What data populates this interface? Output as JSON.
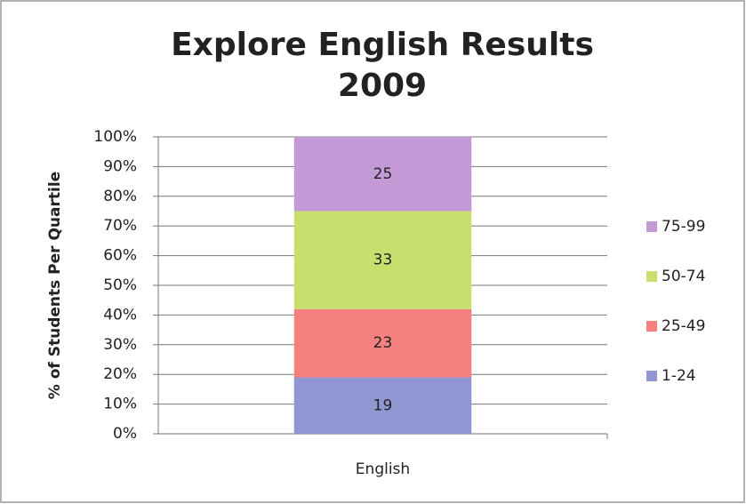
{
  "chart_data": {
    "type": "stacked_bar",
    "title": "Explore English Results 2009",
    "y_label": "% of Students Per Quartile",
    "categories": [
      "English"
    ],
    "series": [
      {
        "name": "1-24",
        "color": "#8f96d2",
        "values": [
          19
        ]
      },
      {
        "name": "25-49",
        "color": "#f4817f",
        "values": [
          23
        ]
      },
      {
        "name": "50-74",
        "color": "#c7df6c",
        "values": [
          33
        ]
      },
      {
        "name": "75-99",
        "color": "#c49ad6",
        "values": [
          25
        ]
      }
    ],
    "ylim": [
      0,
      100
    ],
    "yticks": [
      {
        "value": 0,
        "label": "0%"
      },
      {
        "value": 10,
        "label": "10%"
      },
      {
        "value": 20,
        "label": "20%"
      },
      {
        "value": 30,
        "label": "30%"
      },
      {
        "value": 40,
        "label": "40%"
      },
      {
        "value": 50,
        "label": "50%"
      },
      {
        "value": 60,
        "label": "60%"
      },
      {
        "value": 70,
        "label": "70%"
      },
      {
        "value": 80,
        "label": "80%"
      },
      {
        "value": 90,
        "label": "90%"
      },
      {
        "value": 100,
        "label": "100%"
      }
    ],
    "grid": true,
    "legend": "right"
  }
}
